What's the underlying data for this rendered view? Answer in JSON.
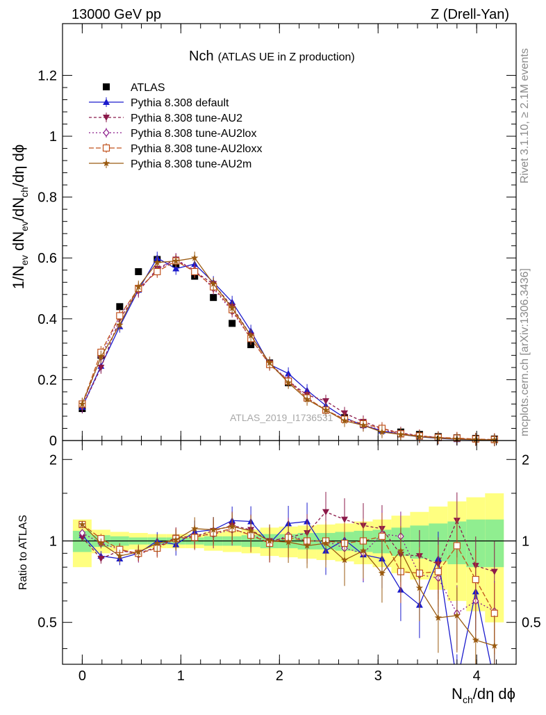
{
  "header": {
    "left": "13000 GeV pp",
    "right": "Z (Drell-Yan)"
  },
  "side_labels": {
    "upper": "Rivet 3.1.10, ≥ 2.1M events",
    "lower": "mcplots.cern.ch [arXiv:1306.3436]"
  },
  "colors": {
    "atlas": "#000000",
    "default": "#1a1acc",
    "au2": "#8b1a4a",
    "au2lox": "#8b1a8b",
    "au2loxx": "#c0501a",
    "au2m": "#9a5a10",
    "band_inner": "#90ee90",
    "band_outer": "#ffff80"
  },
  "chart_data": [
    {
      "type": "line",
      "title": "Nch",
      "subtitle": "(ATLAS UE in Z production)",
      "watermark": "ATLAS_2019_I1736531",
      "ylabel": "1/N_ev dN_ev/dN_ch/dη dϕ",
      "xlim": [
        -0.2,
        4.4
      ],
      "ylim": [
        0,
        1.37
      ],
      "yticks": [
        "0",
        "0.2",
        "0.4",
        "0.6",
        "0.8",
        "1",
        "1.2"
      ],
      "x": [
        0,
        0.19,
        0.38,
        0.57,
        0.76,
        0.95,
        1.14,
        1.33,
        1.52,
        1.71,
        1.9,
        2.09,
        2.28,
        2.47,
        2.66,
        2.85,
        3.04,
        3.23,
        3.42,
        3.61,
        3.8,
        3.99,
        4.18
      ],
      "series": [
        {
          "name": "ATLAS",
          "style": "square",
          "values": [
            0.105,
            0.28,
            0.44,
            0.555,
            0.595,
            0.58,
            0.54,
            0.47,
            0.385,
            0.315,
            0.255,
            0.19,
            0.14,
            0.1,
            0.075,
            0.055,
            0.038,
            0.028,
            0.02,
            0.013,
            0.009,
            0.007,
            0.005
          ]
        },
        {
          "name": "Pythia 8.308 default",
          "style": "triangle-up",
          "values": [
            0.11,
            0.245,
            0.375,
            0.495,
            0.6,
            0.565,
            0.58,
            0.52,
            0.455,
            0.36,
            0.25,
            0.22,
            0.165,
            0.115,
            0.075,
            0.05,
            0.032,
            0.02,
            0.012,
            0.007,
            0.004,
            0.003,
            0.002
          ]
        },
        {
          "name": "Pythia 8.308 tune-AU2",
          "style": "triangle-down",
          "values": [
            0.11,
            0.24,
            0.4,
            0.49,
            0.565,
            0.595,
            0.555,
            0.515,
            0.44,
            0.345,
            0.255,
            0.195,
            0.15,
            0.13,
            0.09,
            0.062,
            0.04,
            0.025,
            0.016,
            0.01,
            0.006,
            0.004,
            0.003
          ]
        },
        {
          "name": "Pythia 8.308 tune-AU2lox",
          "style": "diamond",
          "values": [
            0.115,
            0.275,
            0.41,
            0.495,
            0.56,
            0.595,
            0.56,
            0.5,
            0.425,
            0.335,
            0.25,
            0.2,
            0.14,
            0.1,
            0.07,
            0.05,
            0.035,
            0.022,
            0.014,
            0.009,
            0.006,
            0.004,
            0.003
          ]
        },
        {
          "name": "Pythia 8.308 tune-AU2loxx",
          "style": "open-square",
          "values": [
            0.12,
            0.29,
            0.41,
            0.5,
            0.555,
            0.59,
            0.555,
            0.505,
            0.43,
            0.335,
            0.25,
            0.195,
            0.14,
            0.1,
            0.07,
            0.055,
            0.04,
            0.022,
            0.015,
            0.01,
            0.008,
            0.005,
            0.003
          ]
        },
        {
          "name": "Pythia 8.308 tune-AU2m",
          "style": "star",
          "values": [
            0.12,
            0.275,
            0.38,
            0.505,
            0.585,
            0.59,
            0.6,
            0.515,
            0.435,
            0.345,
            0.255,
            0.19,
            0.135,
            0.1,
            0.065,
            0.05,
            0.028,
            0.02,
            0.013,
            0.008,
            0.005,
            0.003,
            0.002
          ]
        }
      ]
    },
    {
      "type": "line",
      "ylabel": "Ratio to ATLAS",
      "xlabel": "N_ch/dη dϕ",
      "xlim": [
        -0.2,
        4.4
      ],
      "ylim": [
        0.35,
        2.35
      ],
      "log_y": true,
      "yticks": [
        "0.5",
        "1",
        "2"
      ],
      "xticks": [
        "0",
        "1",
        "2",
        "3",
        "4"
      ],
      "band_inner": [
        0.09,
        0.05,
        0.04,
        0.03,
        0.03,
        0.03,
        0.03,
        0.04,
        0.04,
        0.05,
        0.06,
        0.06,
        0.07,
        0.07,
        0.08,
        0.09,
        0.1,
        0.12,
        0.14,
        0.16,
        0.18,
        0.2,
        0.2
      ],
      "band_outer": [
        0.2,
        0.1,
        0.08,
        0.07,
        0.06,
        0.06,
        0.06,
        0.08,
        0.09,
        0.1,
        0.12,
        0.13,
        0.14,
        0.15,
        0.16,
        0.18,
        0.2,
        0.24,
        0.28,
        0.34,
        0.4,
        0.45,
        0.5
      ],
      "series": [
        {
          "name": "Pythia 8.308 default",
          "values": [
            1.05,
            0.88,
            0.86,
            0.9,
            1.0,
            0.97,
            1.08,
            1.1,
            1.19,
            1.18,
            0.98,
            1.16,
            1.18,
            0.92,
            1.01,
            0.89,
            0.86,
            0.66,
            0.58,
            0.86,
            0.3,
            0.65,
            0.3
          ]
        },
        {
          "name": "Pythia 8.308 tune-AU2",
          "values": [
            1.03,
            0.86,
            0.92,
            0.9,
            0.95,
            1.03,
            1.04,
            1.09,
            1.14,
            1.1,
            1.0,
            1.03,
            1.07,
            1.28,
            1.2,
            1.14,
            1.11,
            0.89,
            0.88,
            0.82,
            1.19,
            0.81,
            0.77
          ]
        },
        {
          "name": "Pythia 8.308 tune-AU2lox",
          "values": [
            1.07,
            0.98,
            0.93,
            0.89,
            0.95,
            1.02,
            1.04,
            1.06,
            1.1,
            1.06,
            0.98,
            1.05,
            1.0,
            1.0,
            0.94,
            0.9,
            1.06,
            1.04,
            0.75,
            0.73,
            0.54,
            0.6,
            0.55
          ]
        },
        {
          "name": "Pythia 8.308 tune-AU2loxx",
          "values": [
            1.15,
            1.02,
            0.93,
            0.9,
            0.94,
            1.02,
            1.03,
            1.07,
            1.11,
            1.05,
            0.98,
            1.03,
            1.0,
            1.0,
            0.98,
            1.0,
            1.04,
            0.77,
            0.76,
            0.77,
            0.96,
            0.72,
            0.54
          ]
        },
        {
          "name": "Pythia 8.308 tune-AU2m",
          "values": [
            1.15,
            0.98,
            0.88,
            0.91,
            0.98,
            1.01,
            1.11,
            1.1,
            1.13,
            1.09,
            1.0,
            0.99,
            0.96,
            0.98,
            0.85,
            0.92,
            0.76,
            0.92,
            0.67,
            0.52,
            0.53,
            0.43,
            0.41
          ]
        }
      ]
    }
  ]
}
